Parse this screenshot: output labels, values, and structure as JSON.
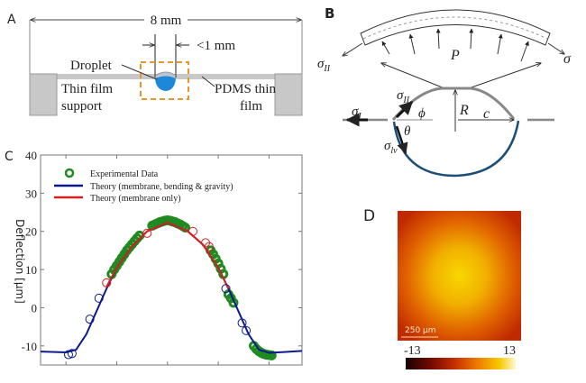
{
  "panel_a": {
    "label": "A",
    "width_label": "8 mm",
    "gap_label": "<1 mm",
    "droplet": "Droplet",
    "support": [
      "Thin film",
      "support"
    ],
    "pdms": [
      "PDMS thin",
      "film"
    ],
    "colors": {
      "droplet": "#1e88d8",
      "film": "#c8c8c8",
      "highlight_box": "#e8962a"
    }
  },
  "panel_b": {
    "label": "B",
    "sigma_ii_top": "σ",
    "sigma_ii_top_sub": "II",
    "pressure": "P",
    "sigma_right": "σ",
    "sigma_ii": "σ",
    "sigma_ii_sub": "II",
    "phi": "ϕ",
    "radius": "R",
    "c": "c",
    "sigma_i": "σ",
    "sigma_i_sub": "I",
    "theta": "θ",
    "sigma_lv": "σ",
    "sigma_lv_sub": "lv"
  },
  "panel_d": {
    "label": "D",
    "scale_bar": "250 μm",
    "colorbar_min": "-13",
    "colorbar_max": "13",
    "colormap": [
      "#1a0000",
      "#7a0c00",
      "#c83000",
      "#ee7a00",
      "#f6c800",
      "#fff8d0"
    ]
  },
  "chart_data": {
    "type": "scatter+line",
    "panel_label": "C",
    "ylabel": "Deflection [μm]",
    "ylim": [
      -15,
      40
    ],
    "yticks": [
      -10,
      0,
      10,
      20,
      30,
      40
    ],
    "xlim": [
      0.5,
      5.65
    ],
    "xticks": [
      1,
      2,
      3,
      4,
      5
    ],
    "xtick_labels": "none",
    "legend_placement": "top-left",
    "series": [
      {
        "name": "Experimental Data",
        "kind": "scatter",
        "color": "#1f8a1f",
        "sparse": [
          [
            1.05,
            -12.3
          ],
          [
            1.12,
            -12
          ],
          [
            1.47,
            -3
          ],
          [
            1.65,
            2.5
          ],
          [
            1.8,
            6.5
          ],
          [
            2.6,
            19.5
          ],
          [
            3.5,
            20
          ],
          [
            3.75,
            17
          ],
          [
            3.82,
            16
          ],
          [
            4.15,
            5
          ],
          [
            4.47,
            -4
          ],
          [
            4.55,
            -6
          ]
        ],
        "dense": [
          [
            1.9,
            8.8
          ],
          [
            1.95,
            10
          ],
          [
            2.0,
            11
          ],
          [
            2.05,
            12
          ],
          [
            2.1,
            13
          ],
          [
            2.15,
            14
          ],
          [
            2.2,
            15
          ],
          [
            2.25,
            15.8
          ],
          [
            2.3,
            16.6
          ],
          [
            2.35,
            17.4
          ],
          [
            2.4,
            18.2
          ],
          [
            2.45,
            18.9
          ],
          [
            2.7,
            21.5
          ],
          [
            2.75,
            21.8
          ],
          [
            2.8,
            22.1
          ],
          [
            2.85,
            22.4
          ],
          [
            2.9,
            22.6
          ],
          [
            2.95,
            22.8
          ],
          [
            3.0,
            22.9
          ],
          [
            3.05,
            22.8
          ],
          [
            3.1,
            22.6
          ],
          [
            3.15,
            22.4
          ],
          [
            3.2,
            22.1
          ],
          [
            3.25,
            21.8
          ],
          [
            3.3,
            21.4
          ],
          [
            3.35,
            21.0
          ],
          [
            3.85,
            15
          ],
          [
            3.9,
            14
          ],
          [
            3.95,
            12.8
          ],
          [
            4.0,
            11.6
          ],
          [
            4.05,
            10.2
          ],
          [
            4.1,
            8.8
          ],
          [
            4.2,
            3.5
          ],
          [
            4.25,
            2.5
          ],
          [
            4.3,
            1.3
          ],
          [
            4.7,
            -10
          ],
          [
            4.75,
            -10.8
          ],
          [
            4.8,
            -11.4
          ],
          [
            4.85,
            -11.8
          ],
          [
            4.9,
            -12.1
          ],
          [
            4.95,
            -12.3
          ],
          [
            5.0,
            -12.4
          ],
          [
            5.05,
            -12.5
          ]
        ]
      },
      {
        "name": "Theory (membrane, bending & gravity)",
        "kind": "line",
        "color": "#0d1a8c",
        "points": [
          [
            0.5,
            -11.5
          ],
          [
            1.0,
            -11.7
          ],
          [
            1.2,
            -11
          ],
          [
            1.4,
            -7
          ],
          [
            1.6,
            -1
          ],
          [
            1.8,
            5
          ],
          [
            2.0,
            10.5
          ],
          [
            2.3,
            16
          ],
          [
            2.6,
            20
          ],
          [
            3.0,
            22.3
          ],
          [
            3.4,
            20
          ],
          [
            3.7,
            16.5
          ],
          [
            4.0,
            10.5
          ],
          [
            4.2,
            5
          ],
          [
            4.4,
            -1
          ],
          [
            4.6,
            -7
          ],
          [
            4.8,
            -11
          ],
          [
            5.0,
            -11.8
          ],
          [
            5.3,
            -11.6
          ],
          [
            5.65,
            -11.3
          ]
        ]
      },
      {
        "name": "Theory (membrane only)",
        "kind": "line",
        "color": "#d62020",
        "points": [
          [
            1.8,
            5.5
          ],
          [
            2.0,
            10.5
          ],
          [
            2.3,
            16
          ],
          [
            2.6,
            20
          ],
          [
            3.0,
            22.3
          ],
          [
            3.4,
            20
          ],
          [
            3.7,
            16.5
          ],
          [
            4.0,
            10.5
          ],
          [
            4.2,
            5
          ]
        ]
      }
    ]
  }
}
